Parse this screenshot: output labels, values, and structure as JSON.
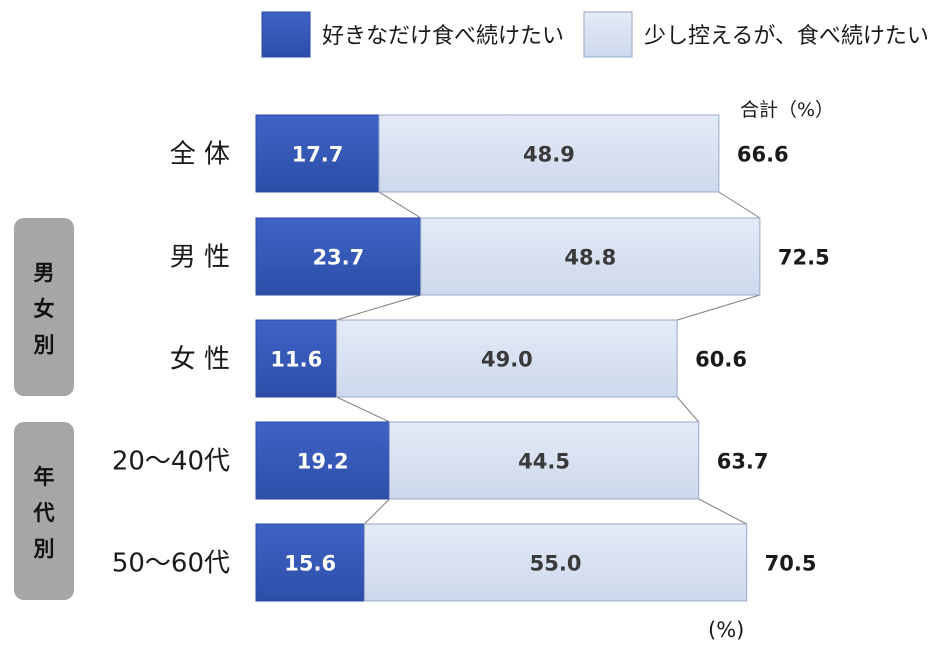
{
  "chart_data": {
    "type": "bar",
    "stacked": true,
    "orientation": "horizontal",
    "unit_label": "(%)",
    "total_header": "合計（%）",
    "categories": [
      "全 体",
      "男 性",
      "女 性",
      "20～40代",
      "50～60代"
    ],
    "series": [
      {
        "name": "好きなだけ食べ続けたい",
        "color": "#3556b8",
        "values": [
          17.7,
          23.7,
          11.6,
          19.2,
          15.6
        ]
      },
      {
        "name": "少し控えるが、食べ続けたい",
        "color": "#d6dff0",
        "values": [
          48.9,
          48.8,
          49.0,
          44.5,
          55.0
        ]
      }
    ],
    "totals": [
      66.6,
      72.5,
      60.6,
      63.7,
      70.5
    ],
    "groups": [
      {
        "label": "男女別",
        "categories": [
          1,
          2
        ]
      },
      {
        "label": "年代別",
        "categories": [
          3,
          4
        ]
      }
    ],
    "xlim": [
      0,
      100
    ],
    "grid": false,
    "legend": "top"
  }
}
